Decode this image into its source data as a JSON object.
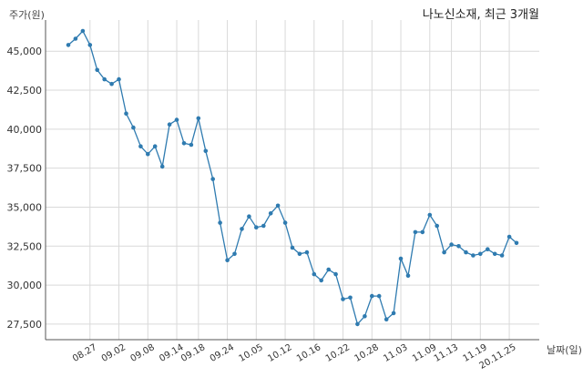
{
  "chart_data": {
    "type": "line",
    "title": "나노신소재, 최근 3개월",
    "ylabel": "주가(원)",
    "xlabel": "날짜(일)",
    "ylim": [
      26500,
      47000
    ],
    "yticks": [
      27500,
      30000,
      32500,
      35000,
      37500,
      40000,
      42500,
      45000
    ],
    "ytick_labels": [
      "27,500",
      "30,000",
      "32,500",
      "35,000",
      "37,500",
      "40,000",
      "42,500",
      "45,000"
    ],
    "xtick_labels": [
      "08.27",
      "09.02",
      "09.08",
      "09.14",
      "09.18",
      "09.24",
      "10.05",
      "10.12",
      "10.16",
      "10.22",
      "10.28",
      "11.03",
      "11.09",
      "11.13",
      "11.19",
      "20.11.25"
    ],
    "xtick_index": [
      3,
      7,
      11,
      15,
      18,
      22,
      26,
      30,
      34,
      38,
      42,
      46,
      50,
      53,
      57,
      61
    ],
    "grid": true,
    "line_color": "#2f7bb0",
    "series": [
      {
        "values": [
          45400,
          45800,
          46300,
          45400,
          43800,
          43200,
          42900,
          43200,
          41000,
          40100,
          38900,
          38400,
          38900,
          37600,
          40300,
          40600,
          39100,
          39000,
          40700,
          38600,
          36800,
          34000,
          31600,
          32000,
          33600,
          34400,
          33700,
          33800,
          34600,
          35100,
          34000,
          32400,
          32000,
          32100,
          30700,
          30300,
          31000,
          30700,
          29100,
          29200,
          27500,
          28000,
          29300,
          29300,
          27800,
          28200,
          31700,
          30600,
          33400,
          33400,
          34500,
          33800,
          32100,
          32600,
          32500,
          32100,
          31900,
          32000,
          32300,
          32000,
          31900,
          33100,
          32700
        ]
      }
    ]
  }
}
